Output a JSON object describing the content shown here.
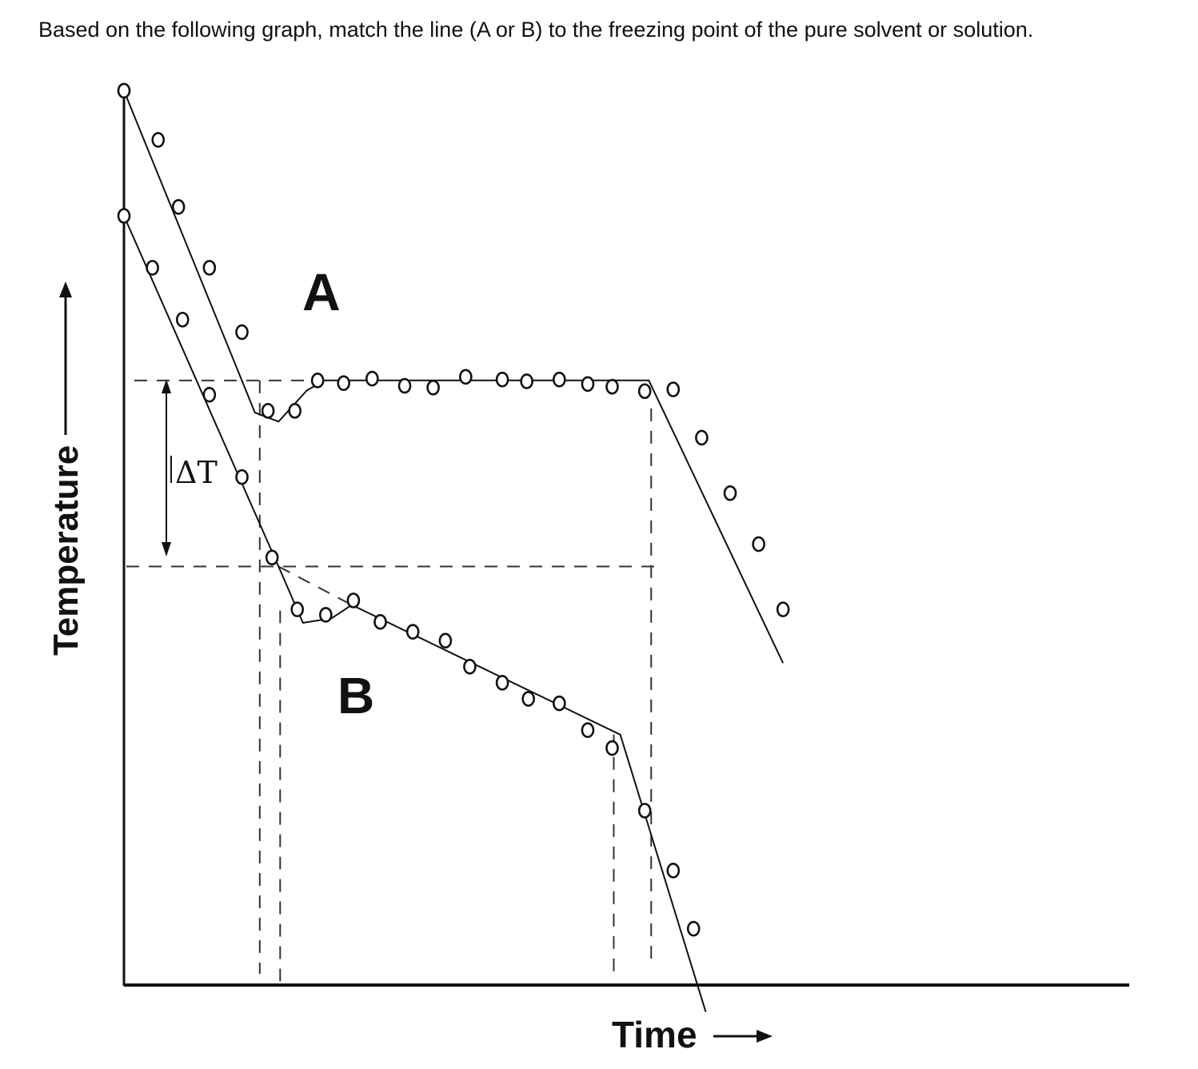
{
  "question": "Based on the following graph, match the line (A or B) to the freezing point of the pure solvent or solution.",
  "chart_data": {
    "type": "line",
    "title": "",
    "xlabel": "Time",
    "ylabel": "Temperature",
    "x_arrow": "→",
    "y_arrow": "→",
    "delta_label": "ΔT",
    "grid": false,
    "legend": "none",
    "xlim": [
      0,
      100
    ],
    "ylim": [
      0,
      100
    ],
    "freezing_points": {
      "pure_solvent": 67.6,
      "solution": 46.8,
      "delta": 20.8
    },
    "series": [
      {
        "name": "A",
        "line": [
          [
            0.0,
            100.0
          ],
          [
            16.1,
            64.0
          ],
          [
            19.0,
            63.0
          ],
          [
            22.5,
            66.5
          ],
          [
            24.7,
            67.6
          ],
          [
            64.5,
            67.6
          ],
          [
            81.0,
            36.0
          ]
        ],
        "points": [
          [
            0.0,
            100.0
          ],
          [
            4.2,
            94.5
          ],
          [
            6.7,
            87.0
          ],
          [
            10.5,
            80.2
          ],
          [
            14.5,
            73.0
          ],
          [
            17.7,
            64.2
          ],
          [
            21.0,
            64.2
          ],
          [
            23.8,
            67.6
          ],
          [
            27.0,
            67.3
          ],
          [
            30.5,
            67.8
          ],
          [
            34.5,
            67.0
          ],
          [
            38.0,
            66.8
          ],
          [
            42.0,
            68.0
          ],
          [
            46.5,
            67.7
          ],
          [
            49.5,
            67.5
          ],
          [
            53.5,
            67.7
          ],
          [
            57.0,
            67.2
          ],
          [
            60.0,
            66.9
          ],
          [
            64.0,
            66.4
          ],
          [
            67.5,
            66.6
          ],
          [
            71.0,
            61.2
          ],
          [
            74.5,
            55.0
          ],
          [
            78.0,
            49.3
          ],
          [
            81.0,
            42.0
          ]
        ]
      },
      {
        "name": "B",
        "line": [
          [
            0.0,
            86.0
          ],
          [
            19.0,
            46.8
          ],
          [
            22.0,
            40.5
          ],
          [
            25.5,
            41.0
          ],
          [
            28.0,
            42.5
          ],
          [
            61.0,
            28.0
          ],
          [
            71.5,
            -3.0
          ]
        ],
        "points": [
          [
            0.0,
            86.0
          ],
          [
            3.5,
            80.2
          ],
          [
            7.2,
            74.4
          ],
          [
            10.5,
            66.0
          ],
          [
            14.5,
            56.8
          ],
          [
            18.2,
            47.8
          ],
          [
            21.3,
            42.0
          ],
          [
            24.8,
            41.4
          ],
          [
            28.2,
            43.0
          ],
          [
            31.5,
            40.6
          ],
          [
            35.5,
            39.5
          ],
          [
            39.5,
            38.5
          ],
          [
            42.5,
            35.6
          ],
          [
            46.5,
            33.8
          ],
          [
            49.7,
            32.0
          ],
          [
            53.5,
            31.5
          ],
          [
            57.0,
            28.5
          ],
          [
            60.0,
            26.5
          ],
          [
            64.0,
            19.5
          ],
          [
            67.5,
            12.8
          ],
          [
            70.0,
            6.3
          ]
        ]
      }
    ],
    "annotations": [
      "A",
      "B"
    ]
  }
}
